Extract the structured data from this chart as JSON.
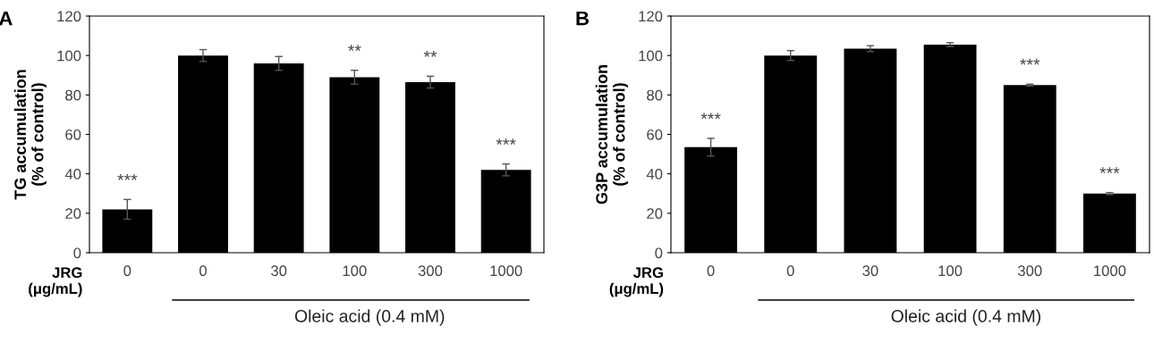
{
  "chart_data": [
    {
      "type": "bar",
      "title": "A",
      "ylabel": "TG accumulation\n(% of control)",
      "xlabel": "JRG\n(μg/mL)",
      "categories": [
        "0",
        "0",
        "30",
        "100",
        "300",
        "1000"
      ],
      "values": [
        22,
        100,
        96,
        89,
        86.5,
        42
      ],
      "errors": [
        5,
        3,
        3.5,
        3.5,
        3,
        3
      ],
      "value_labels": [
        "***",
        null,
        null,
        "**",
        "**",
        "***"
      ],
      "color": "#000000",
      "ylim": [
        0,
        120
      ],
      "yticks": [
        0,
        20,
        40,
        60,
        80,
        100,
        120
      ],
      "annotations": [
        "Oleic acid (0.4 mM)"
      ],
      "grid": false,
      "legend": false
    },
    {
      "type": "bar",
      "title": "B",
      "ylabel": "G3P accumulation\n(% of control)",
      "xlabel": "JRG\n(μg/mL)",
      "categories": [
        "0",
        "0",
        "30",
        "100",
        "300",
        "1000"
      ],
      "values": [
        53.5,
        100,
        103.5,
        105.5,
        85,
        30
      ],
      "errors": [
        4.5,
        2.5,
        1.5,
        1,
        0.5,
        0.5
      ],
      "value_labels": [
        "***",
        null,
        null,
        null,
        "***",
        "***"
      ],
      "color": "#000000",
      "ylim": [
        0,
        120
      ],
      "yticks": [
        0,
        20,
        40,
        60,
        80,
        100,
        120
      ],
      "annotations": [
        "Oleic acid (0.4 mM)"
      ],
      "grid": false,
      "legend": false
    }
  ]
}
